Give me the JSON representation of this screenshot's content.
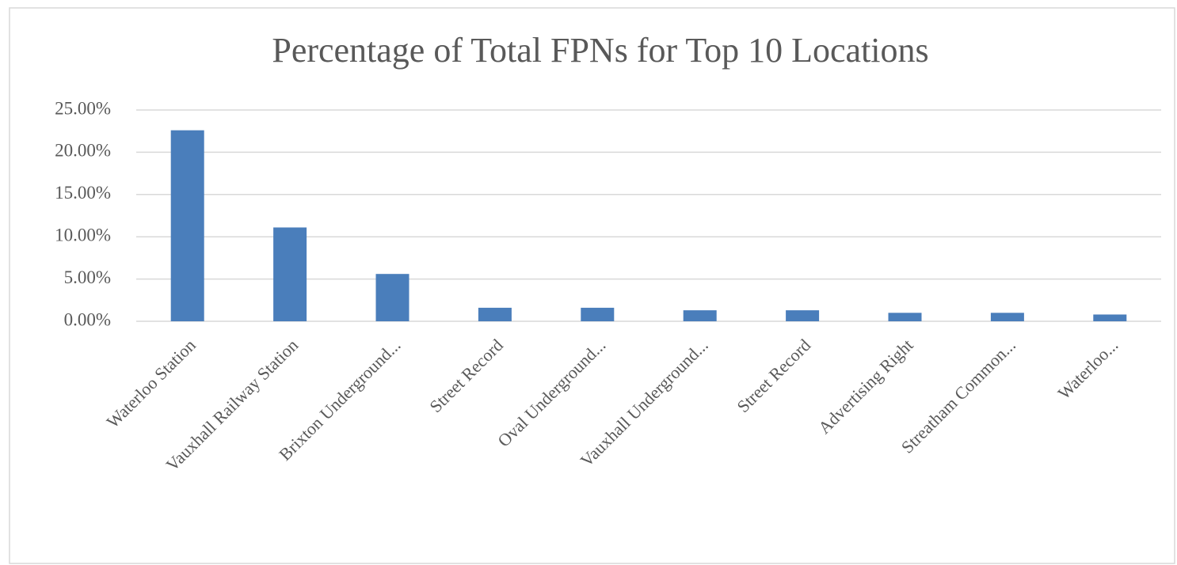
{
  "chart_data": {
    "type": "bar",
    "title": "Percentage of Total FPNs for Top 10 Locations",
    "categories": [
      "Waterloo Station",
      "Vauxhall Railway Station",
      "Brixton Underground...",
      "Street Record",
      "Oval Underground...",
      "Vauxhall Underground...",
      "Street Record",
      "Advertising Right",
      "Streatham Common...",
      "Waterloo..."
    ],
    "values": [
      22.6,
      11.1,
      5.6,
      1.6,
      1.6,
      1.3,
      1.3,
      1.0,
      1.0,
      0.8
    ],
    "color": "#4a7ebb",
    "ylim": [
      0,
      25
    ],
    "yticks": [
      {
        "value": 0,
        "label": "0.00%"
      },
      {
        "value": 5,
        "label": "5.00%"
      },
      {
        "value": 10,
        "label": "10.00%"
      },
      {
        "value": 15,
        "label": "15.00%"
      },
      {
        "value": 20,
        "label": "20.00%"
      },
      {
        "value": 25,
        "label": "25.00%"
      }
    ],
    "grid": true
  }
}
